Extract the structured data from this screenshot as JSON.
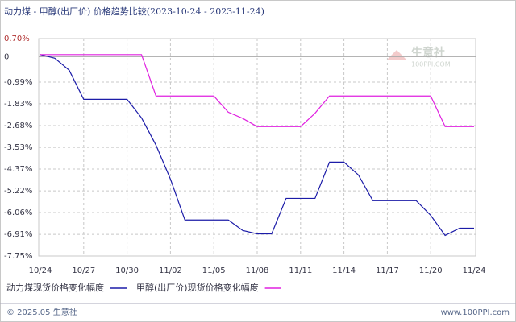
{
  "chart_data": {
    "type": "line",
    "title": "动力煤 - 甲醇(出厂价) 价格趋势比较(2023-10-24 - 2023-11-24)",
    "categories": [
      "10/24",
      null,
      null,
      "10/27",
      null,
      null,
      "10/30",
      null,
      null,
      "11/02",
      null,
      null,
      "11/05",
      null,
      null,
      "11/08",
      null,
      null,
      "11/11",
      null,
      null,
      "11/14",
      null,
      null,
      "11/17",
      null,
      null,
      "11/20",
      null,
      null,
      "11/24"
    ],
    "series": [
      {
        "name": "动力煤现货价格变化幅度",
        "color": "#1c1ca8",
        "values": [
          0.08,
          -0.06,
          -0.53,
          -1.66,
          -1.66,
          -1.66,
          -1.66,
          -2.38,
          -3.44,
          -4.76,
          -6.35,
          -6.35,
          -6.35,
          -6.35,
          -6.76,
          -6.89,
          -6.89,
          -5.51,
          -5.51,
          -5.51,
          -4.1,
          -4.1,
          -4.6,
          -5.6,
          -5.6,
          -5.6,
          -5.6,
          -6.17,
          -6.95,
          -6.67,
          -6.67
        ]
      },
      {
        "name": "甲醇(出厂价)现货价格变化幅度",
        "color": "#e020e0",
        "values": [
          0.08,
          0.08,
          0.08,
          0.08,
          0.08,
          0.08,
          0.08,
          0.08,
          -1.53,
          -1.53,
          -1.53,
          -1.53,
          -1.53,
          -2.16,
          -2.4,
          -2.72,
          -2.72,
          -2.72,
          -2.72,
          -2.2,
          -1.53,
          -1.53,
          -1.53,
          -1.53,
          -1.53,
          -1.53,
          -1.53,
          -1.53,
          -2.72,
          -2.72,
          -2.72
        ]
      }
    ],
    "ylim": [
      -7.75,
      0.7
    ],
    "yticks": [
      {
        "value": 0.7,
        "label": "0.70%"
      },
      0,
      {
        "value": -0.99,
        "label": "-0.99%"
      },
      {
        "value": -1.83,
        "label": "-1.83%"
      },
      {
        "value": -2.68,
        "label": "-2.68%"
      },
      {
        "value": -3.53,
        "label": "-3.53%"
      },
      {
        "value": -4.37,
        "label": "-4.37%"
      },
      {
        "value": -5.22,
        "label": "-5.22%"
      },
      {
        "value": -6.06,
        "label": "-6.06%"
      },
      {
        "value": -6.91,
        "label": "-6.91%"
      },
      {
        "value": -7.75,
        "label": "-7.75%"
      }
    ],
    "grid": true
  },
  "watermark": {
    "name": "生意社",
    "site": "100PPI.COM"
  },
  "footer": {
    "copyright": "© 2025.05 生意社",
    "site": "www.100PPI.com"
  }
}
